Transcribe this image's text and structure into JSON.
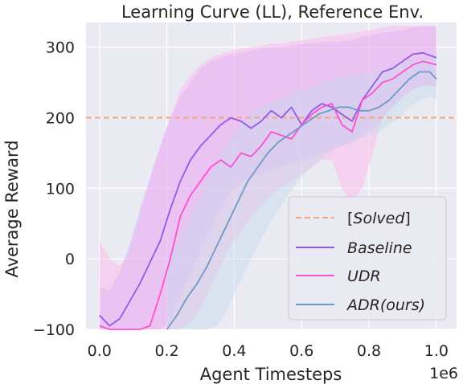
{
  "chart_data": {
    "type": "line",
    "title": "Learning Curve (LL), Reference Env.",
    "xlabel": "Agent Timesteps",
    "ylabel": "Average Reward",
    "x_offset_label": "1e6",
    "xlim": [
      -0.04,
      1.06
    ],
    "ylim": [
      -100,
      335
    ],
    "xticks": [
      0.0,
      0.2,
      0.4,
      0.6,
      0.8,
      1.0
    ],
    "xtick_labels": [
      "0.0",
      "0.2",
      "0.4",
      "0.6",
      "0.8",
      "1.0"
    ],
    "yticks": [
      -100,
      0,
      100,
      200,
      300
    ],
    "ytick_labels": [
      "−100",
      "0",
      "100",
      "200",
      "300"
    ],
    "grid": true,
    "background": "#eaeaf2",
    "legend_position": "lower-right",
    "solved_threshold": {
      "name": "[Solved]",
      "y": 200,
      "color": "#f4a582",
      "style": "dashed"
    },
    "series": [
      {
        "name": "Baseline",
        "color": "#9558e8",
        "band_color": "#c7b2ff",
        "x": [
          0.0,
          0.03,
          0.06,
          0.09,
          0.12,
          0.15,
          0.18,
          0.21,
          0.24,
          0.27,
          0.3,
          0.33,
          0.36,
          0.39,
          0.42,
          0.45,
          0.48,
          0.51,
          0.54,
          0.57,
          0.6,
          0.63,
          0.66,
          0.69,
          0.72,
          0.75,
          0.78,
          0.81,
          0.84,
          0.87,
          0.9,
          0.93,
          0.96,
          1.0
        ],
        "y": [
          -80,
          -95,
          -85,
          -60,
          -35,
          -5,
          25,
          70,
          110,
          140,
          160,
          175,
          190,
          200,
          195,
          185,
          195,
          210,
          200,
          215,
          190,
          210,
          220,
          215,
          205,
          195,
          225,
          245,
          265,
          270,
          280,
          290,
          292,
          285
        ],
        "upper": [
          -40,
          -45,
          -20,
          20,
          70,
          115,
          160,
          200,
          230,
          250,
          270,
          280,
          285,
          290,
          292,
          295,
          298,
          300,
          300,
          302,
          305,
          305,
          307,
          308,
          308,
          310,
          315,
          318,
          320,
          322,
          325,
          328,
          330,
          330
        ],
        "lower": [
          -100,
          -100,
          -100,
          -100,
          -100,
          -100,
          -100,
          -90,
          -55,
          -20,
          10,
          40,
          70,
          95,
          110,
          115,
          120,
          125,
          130,
          135,
          140,
          145,
          150,
          155,
          160,
          165,
          175,
          185,
          200,
          215,
          230,
          240,
          245,
          245
        ]
      },
      {
        "name": "UDR",
        "color": "#ff4fcf",
        "band_color": "#ffb3ec",
        "x": [
          0.0,
          0.03,
          0.06,
          0.09,
          0.12,
          0.15,
          0.18,
          0.21,
          0.24,
          0.27,
          0.3,
          0.33,
          0.36,
          0.39,
          0.42,
          0.45,
          0.48,
          0.51,
          0.54,
          0.57,
          0.6,
          0.63,
          0.66,
          0.69,
          0.72,
          0.75,
          0.78,
          0.81,
          0.84,
          0.87,
          0.9,
          0.93,
          0.96,
          1.0
        ],
        "y": [
          -95,
          -100,
          -100,
          -100,
          -100,
          -95,
          -50,
          0,
          60,
          90,
          110,
          130,
          140,
          130,
          150,
          145,
          160,
          180,
          175,
          170,
          190,
          205,
          215,
          220,
          190,
          180,
          225,
          235,
          250,
          255,
          265,
          275,
          280,
          275
        ],
        "upper": [
          25,
          0,
          -10,
          10,
          60,
          110,
          160,
          200,
          240,
          260,
          275,
          285,
          290,
          295,
          298,
          300,
          302,
          305,
          305,
          308,
          310,
          312,
          314,
          316,
          318,
          320,
          322,
          325,
          328,
          330,
          330,
          330,
          330,
          330
        ],
        "lower": [
          -100,
          -100,
          -100,
          -100,
          -100,
          -100,
          -100,
          -100,
          -100,
          -90,
          -70,
          -40,
          -10,
          20,
          40,
          60,
          75,
          90,
          100,
          110,
          120,
          130,
          140,
          140,
          100,
          80,
          100,
          150,
          200,
          220,
          230,
          240,
          245,
          245
        ]
      },
      {
        "name": "ADR",
        "name_suffix": "(ours)",
        "color": "#6d9ac4",
        "band_color": "#c6daea",
        "x": [
          0.2,
          0.23,
          0.26,
          0.29,
          0.32,
          0.35,
          0.38,
          0.41,
          0.44,
          0.47,
          0.5,
          0.53,
          0.56,
          0.59,
          0.62,
          0.65,
          0.68,
          0.71,
          0.74,
          0.77,
          0.8,
          0.83,
          0.86,
          0.89,
          0.92,
          0.95,
          0.98,
          1.0
        ],
        "y": [
          -100,
          -80,
          -55,
          -35,
          -10,
          20,
          50,
          80,
          110,
          130,
          150,
          165,
          175,
          185,
          195,
          205,
          210,
          215,
          215,
          210,
          210,
          215,
          225,
          240,
          255,
          265,
          265,
          255
        ],
        "upper": [
          0,
          20,
          50,
          80,
          110,
          140,
          165,
          185,
          200,
          210,
          220,
          225,
          232,
          238,
          242,
          248,
          252,
          256,
          260,
          262,
          265,
          268,
          272,
          276,
          280,
          283,
          285,
          285
        ],
        "lower": [
          -100,
          -100,
          -100,
          -100,
          -100,
          -95,
          -70,
          -40,
          -10,
          20,
          45,
          70,
          90,
          110,
          125,
          140,
          150,
          160,
          165,
          170,
          175,
          180,
          190,
          200,
          215,
          225,
          230,
          225
        ]
      }
    ]
  }
}
